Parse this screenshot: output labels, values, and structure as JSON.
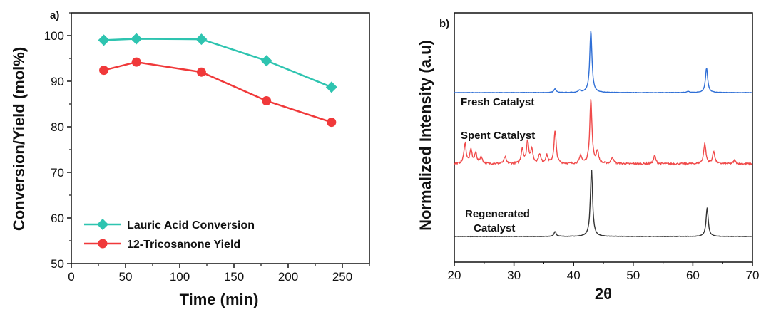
{
  "colors": {
    "conversion": "#2ec4b0",
    "yield": "#f0393a",
    "fresh": "#2f6fd6",
    "spent": "#f04a4a",
    "regenerated": "#333333",
    "axis": "#111111"
  },
  "chart_data": [
    {
      "panel": "a)",
      "type": "line",
      "xlabel": "Time (min)",
      "ylabel": "Conversion/Yield (mol%)",
      "xlim": [
        0,
        275
      ],
      "ylim": [
        50,
        105
      ],
      "xticks": [
        0,
        50,
        100,
        150,
        200,
        250
      ],
      "yticks": [
        50,
        60,
        70,
        80,
        90,
        100
      ],
      "legend_position": "bottom-left",
      "series": [
        {
          "name": "Lauric Acid Conversion",
          "marker": "diamond",
          "color": "#2ec4b0",
          "x": [
            30,
            60,
            120,
            180,
            240
          ],
          "y": [
            99.0,
            99.3,
            99.2,
            94.5,
            88.7
          ]
        },
        {
          "name": "12-Tricosanone Yield",
          "marker": "circle",
          "color": "#f0393a",
          "x": [
            30,
            60,
            120,
            180,
            240
          ],
          "y": [
            92.4,
            94.2,
            92.0,
            85.7,
            81.0
          ]
        }
      ]
    },
    {
      "panel": "b)",
      "type": "line",
      "xlabel": "2θ",
      "ylabel": "Normalized Intensity (a.u)",
      "xlim": [
        20,
        70
      ],
      "xticks": [
        20,
        30,
        40,
        50,
        60,
        70
      ],
      "series": [
        {
          "name": "Fresh Catalyst",
          "color": "#2f6fd6",
          "peaks": [
            [
              36.9,
              0.06
            ],
            [
              41.0,
              0.03
            ],
            [
              42.9,
              0.95
            ],
            [
              59.2,
              0.02
            ],
            [
              62.3,
              0.38
            ]
          ]
        },
        {
          "name": "Spent Catalyst",
          "color": "#f04a4a",
          "peaks": [
            [
              21.8,
              0.3
            ],
            [
              22.8,
              0.2
            ],
            [
              23.6,
              0.15
            ],
            [
              24.5,
              0.1
            ],
            [
              28.5,
              0.1
            ],
            [
              31.4,
              0.22
            ],
            [
              32.3,
              0.33
            ],
            [
              33.0,
              0.2
            ],
            [
              34.3,
              0.14
            ],
            [
              35.5,
              0.12
            ],
            [
              36.9,
              0.48
            ],
            [
              41.2,
              0.12
            ],
            [
              42.9,
              0.95
            ],
            [
              44.0,
              0.18
            ],
            [
              46.5,
              0.1
            ],
            [
              53.6,
              0.12
            ],
            [
              62.0,
              0.3
            ],
            [
              63.5,
              0.18
            ],
            [
              67.0,
              0.05
            ]
          ]
        },
        {
          "name": "Regenerated Catalyst",
          "label_lines": [
            "Regenerated",
            "Catalyst"
          ],
          "color": "#333333",
          "peaks": [
            [
              36.9,
              0.07
            ],
            [
              43.0,
              1.0
            ],
            [
              62.4,
              0.42
            ]
          ]
        }
      ]
    }
  ]
}
